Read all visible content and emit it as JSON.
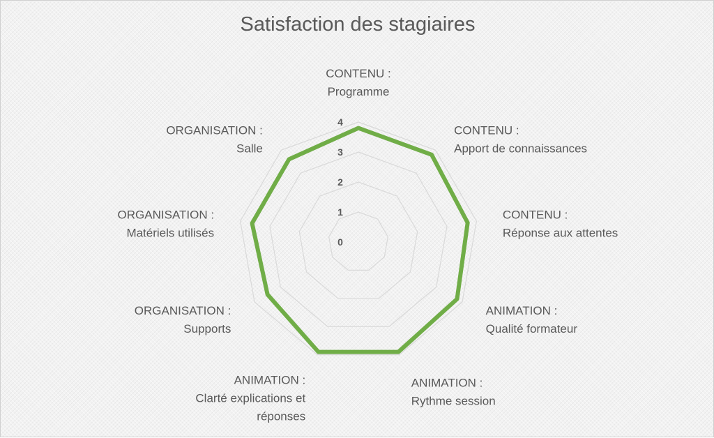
{
  "chart_data": {
    "type": "radar",
    "title": "Satisfaction des stagiaires",
    "categories": [
      [
        "CONTENU :",
        "Programme"
      ],
      [
        "CONTENU :",
        "Apport de connaissances"
      ],
      [
        "CONTENU :",
        "Réponse aux attentes"
      ],
      [
        "ANIMATION :",
        "Qualité formateur"
      ],
      [
        "ANIMATION :",
        "Rythme session"
      ],
      [
        "ANIMATION :",
        "Clarté explications et",
        "réponses"
      ],
      [
        "ORGANISATION :",
        "Supports"
      ],
      [
        "ORGANISATION :",
        "Matériels utilisés"
      ],
      [
        "ORGANISATION :",
        "Salle"
      ]
    ],
    "series": [
      {
        "values": [
          3.8,
          3.8,
          3.7,
          3.8,
          3.9,
          3.9,
          3.5,
          3.6,
          3.6
        ]
      }
    ],
    "rlim": [
      0,
      4
    ],
    "ticks": [
      "0",
      "1",
      "2",
      "3",
      "4"
    ],
    "grid": true,
    "legend": "none",
    "colors": {
      "series": "#70AD47",
      "grid": "#d9d9d9",
      "text": "#595959"
    }
  }
}
